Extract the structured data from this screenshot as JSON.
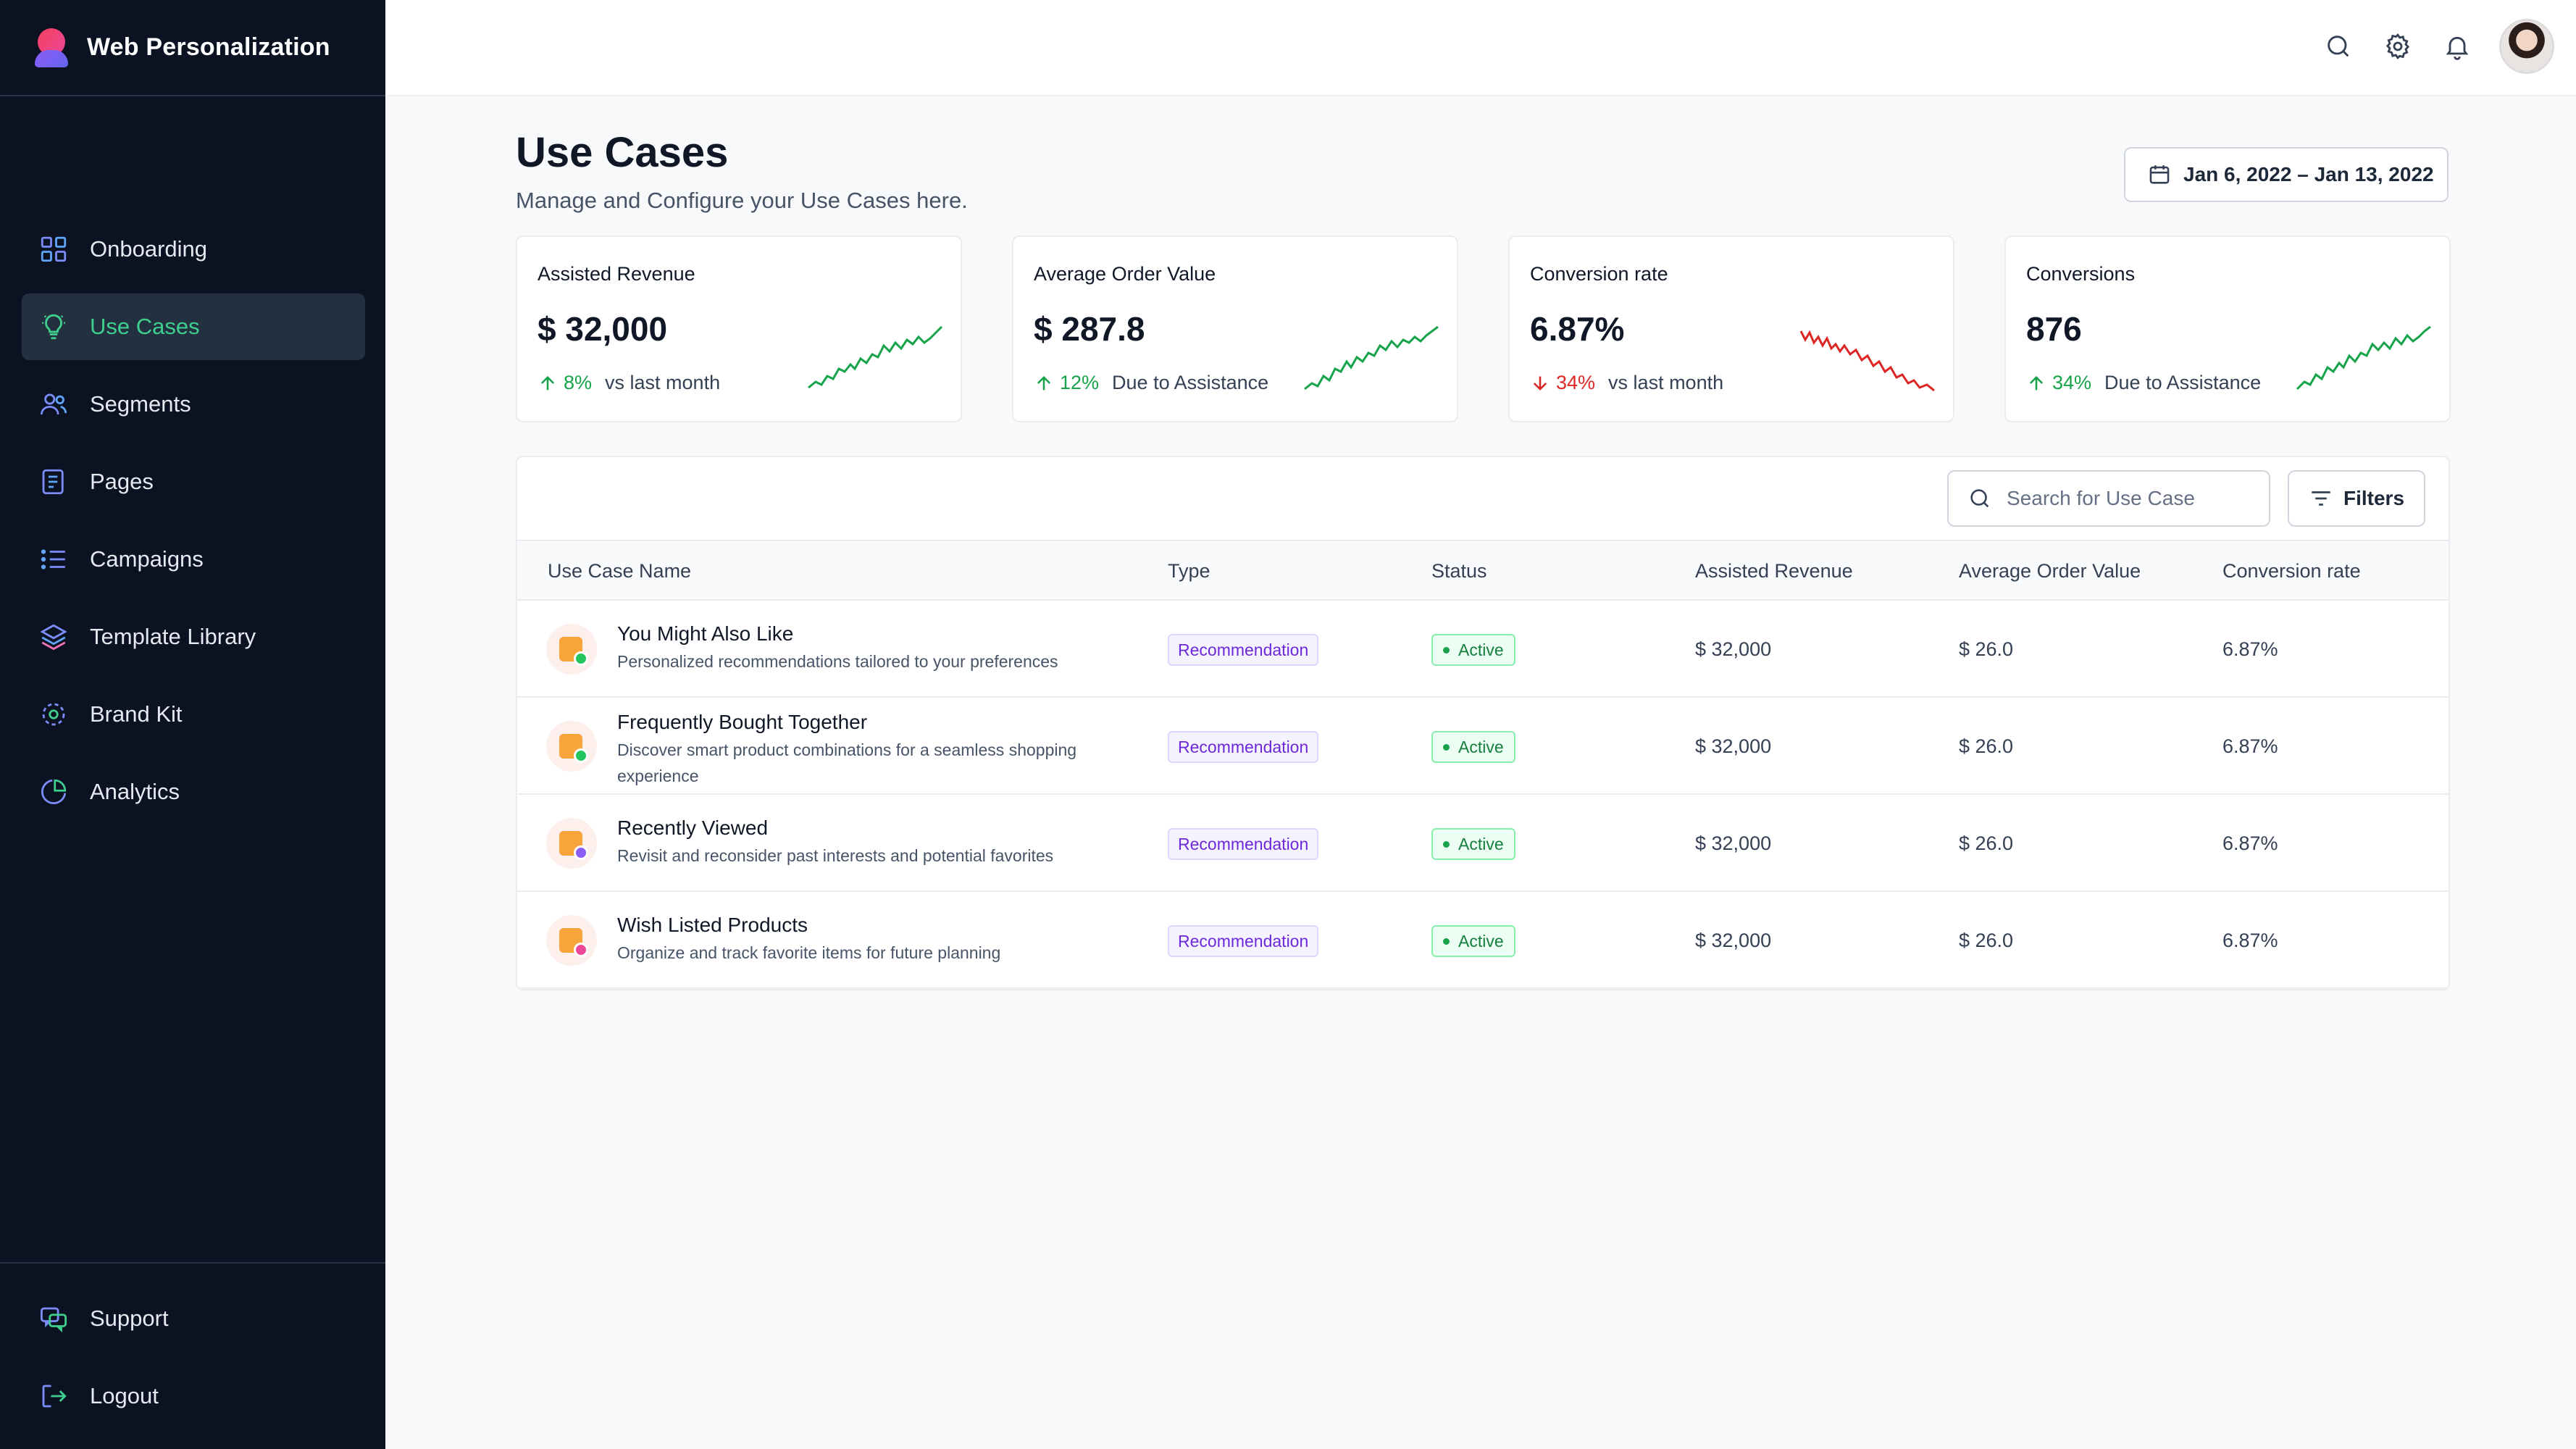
{
  "app": {
    "name": "Web Personalization"
  },
  "sidebar": {
    "items": [
      {
        "label": "Onboarding",
        "icon": "grid-icon",
        "active": false
      },
      {
        "label": "Use Cases",
        "icon": "lightbulb-icon",
        "active": true
      },
      {
        "label": "Segments",
        "icon": "users-icon",
        "active": false
      },
      {
        "label": "Pages",
        "icon": "document-icon",
        "active": false
      },
      {
        "label": "Campaigns",
        "icon": "list-icon",
        "active": false
      },
      {
        "label": "Template Library",
        "icon": "layers-icon",
        "active": false
      },
      {
        "label": "Brand Kit",
        "icon": "target-icon",
        "active": false
      },
      {
        "label": "Analytics",
        "icon": "pie-chart-icon",
        "active": false
      }
    ],
    "bottom": [
      {
        "label": "Support",
        "icon": "chat-icon"
      },
      {
        "label": "Logout",
        "icon": "logout-icon"
      }
    ]
  },
  "topbar": {
    "icons": [
      "search-icon",
      "gear-icon",
      "bell-icon"
    ]
  },
  "header": {
    "title": "Use Cases",
    "subtitle": "Manage and Configure your Use Cases here.",
    "date_range": "Jan 6, 2022 – Jan 13, 2022"
  },
  "metrics": [
    {
      "label": "Assisted Revenue",
      "value": "$ 32,000",
      "change": "8%",
      "direction": "up",
      "note": "vs last month",
      "color": "#16a34a"
    },
    {
      "label": "Average Order Value",
      "value": "$ 287.8",
      "change": "12%",
      "direction": "up",
      "note": "Due to Assistance",
      "color": "#16a34a"
    },
    {
      "label": "Conversion rate",
      "value": "6.87%",
      "change": "34%",
      "direction": "down",
      "note": "vs last month",
      "color": "#dc2626"
    },
    {
      "label": "Conversions",
      "value": "876",
      "change": "34%",
      "direction": "up",
      "note": "Due to Assistance",
      "color": "#16a34a"
    }
  ],
  "toolbar": {
    "search_placeholder": "Search for Use Case",
    "filters_label": "Filters"
  },
  "table": {
    "columns": [
      "Use Case Name",
      "Type",
      "Status",
      "Assisted Revenue",
      "Average Order Value",
      "Conversion rate"
    ],
    "rows": [
      {
        "name": "You Might Also Like",
        "desc": "Personalized recommendations tailored to your preferences",
        "type": "Recommendation",
        "status": "Active",
        "revenue": "$ 32,000",
        "aov": "$ 26.0",
        "conv": "6.87%",
        "accent": "#22c55e"
      },
      {
        "name": "Frequently Bought Together",
        "desc": "Discover smart product combinations for a seamless shopping experience",
        "type": "Recommendation",
        "status": "Active",
        "revenue": "$ 32,000",
        "aov": "$ 26.0",
        "conv": "6.87%",
        "accent": "#22c55e"
      },
      {
        "name": "Recently Viewed",
        "desc": "Revisit and reconsider past interests and potential favorites",
        "type": "Recommendation",
        "status": "Active",
        "revenue": "$ 32,000",
        "aov": "$ 26.0",
        "conv": "6.87%",
        "accent": "#8b5cf6"
      },
      {
        "name": "Wish Listed Products",
        "desc": "Organize and track favorite items for future planning",
        "type": "Recommendation",
        "status": "Active",
        "revenue": "$ 32,000",
        "aov": "$ 26.0",
        "conv": "6.87%",
        "accent": "#ec4899"
      }
    ]
  }
}
